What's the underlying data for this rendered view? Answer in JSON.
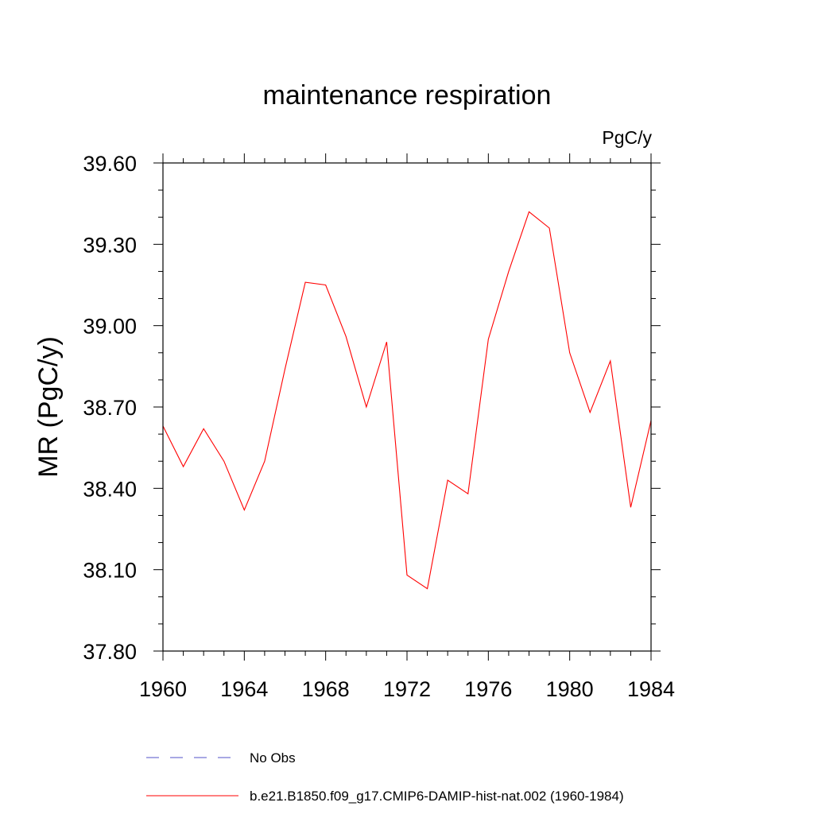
{
  "chart_data": {
    "type": "line",
    "title": "maintenance respiration",
    "units_label": "PgC/y",
    "ylabel": "MR  (PgC/y)",
    "xlabel": "",
    "xlim": [
      1960,
      1984
    ],
    "ylim": [
      37.8,
      39.6
    ],
    "x_ticks": [
      "1960",
      "1964",
      "1968",
      "1972",
      "1976",
      "1980",
      "1984"
    ],
    "y_ticks": [
      "37.80",
      "38.10",
      "38.40",
      "38.70",
      "39.00",
      "39.30",
      "39.60"
    ],
    "grid": false,
    "legend_position": "bottom",
    "x": [
      1960,
      1961,
      1962,
      1963,
      1964,
      1965,
      1966,
      1967,
      1968,
      1969,
      1970,
      1971,
      1972,
      1973,
      1974,
      1975,
      1976,
      1977,
      1978,
      1979,
      1980,
      1981,
      1982,
      1983,
      1984
    ],
    "series": [
      {
        "name": "b.e21.B1850.f09_g17.CMIP6-DAMIP-hist-nat.002 (1960-1984)",
        "color": "#ff0000",
        "style": "solid",
        "values": [
          38.63,
          38.48,
          38.62,
          38.5,
          38.32,
          38.5,
          38.84,
          39.16,
          39.15,
          38.96,
          38.7,
          38.94,
          38.08,
          38.03,
          38.43,
          38.38,
          38.95,
          39.2,
          39.42,
          39.36,
          38.9,
          38.68,
          38.87,
          38.33,
          38.65
        ]
      }
    ],
    "legend": [
      {
        "label": "No Obs",
        "color": "#5050c8",
        "style": "dashed"
      },
      {
        "label": "b.e21.B1850.f09_g17.CMIP6-DAMIP-hist-nat.002 (1960-1984)",
        "color": "#ff0000",
        "style": "solid"
      }
    ]
  }
}
